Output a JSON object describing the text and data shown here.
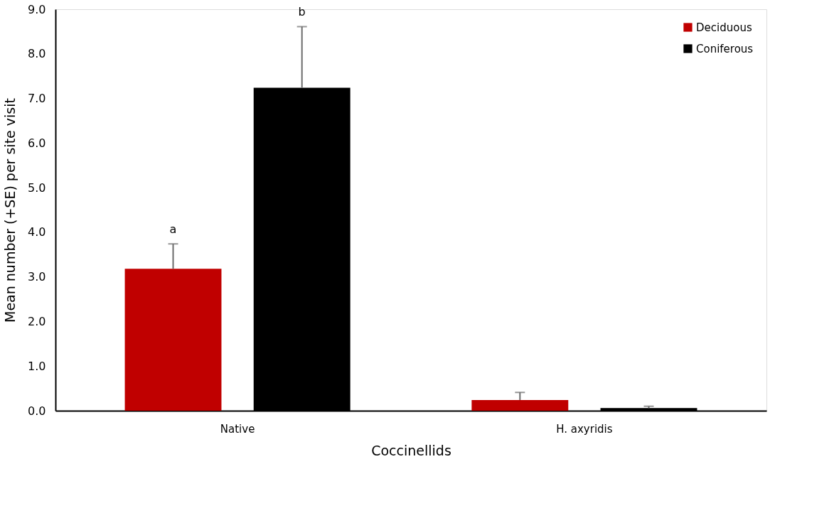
{
  "chart_data": {
    "type": "bar",
    "xlabel": "Coccinellids",
    "ylabel": "Mean number (+SE) per site visit",
    "categories": [
      "Native",
      "H. axyridis"
    ],
    "series": [
      {
        "name": "Deciduous",
        "color": "#c00000",
        "values": [
          3.18,
          0.24
        ],
        "errors": [
          0.56,
          0.17
        ]
      },
      {
        "name": "Coniferous",
        "color": "#000000",
        "values": [
          7.24,
          0.06
        ],
        "errors": [
          1.37,
          0.04
        ]
      }
    ],
    "ylim": [
      0,
      9
    ],
    "yticks": [
      {
        "value": 0,
        "label": "0.0"
      },
      {
        "value": 1,
        "label": "1.0"
      },
      {
        "value": 2,
        "label": "2.0"
      },
      {
        "value": 3,
        "label": "3.0"
      },
      {
        "value": 4,
        "label": "4.0"
      },
      {
        "value": 5,
        "label": "5.0"
      },
      {
        "value": 6,
        "label": "6.0"
      },
      {
        "value": 7,
        "label": "7.0"
      },
      {
        "value": 8,
        "label": "8.0"
      },
      {
        "value": 9,
        "label": "9.0"
      }
    ],
    "annotations": [
      "a",
      "b"
    ],
    "grid": false,
    "legend": "top right"
  }
}
